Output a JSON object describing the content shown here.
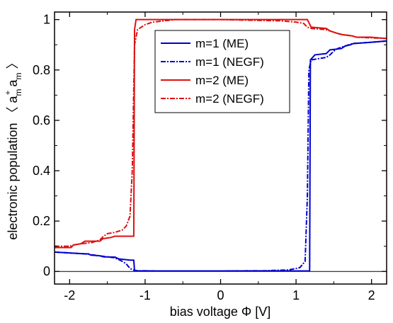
{
  "chart_data": {
    "type": "line",
    "title": "",
    "xlabel": "bias voltage Φ [V]",
    "ylabel": "electronic population ⟨ a_m^+ a_m ⟩",
    "xlim": [
      -2.2,
      2.2
    ],
    "ylim": [
      -0.05,
      1.03
    ],
    "xticks": [
      -2,
      -1,
      0,
      1,
      2
    ],
    "xtick_labels": [
      "-2",
      "-1",
      "0",
      "1",
      "2"
    ],
    "yticks": [
      0,
      0.2,
      0.4,
      0.6,
      0.8,
      1
    ],
    "ytick_labels": [
      "0",
      "0.2",
      "0.4",
      "0.6",
      "0.8",
      "1"
    ],
    "grid": false,
    "legend_position": "top-center",
    "series": [
      {
        "name": "m=1 (ME)",
        "color": "#0000cc",
        "style": "solid",
        "points": [
          [
            -2.2,
            0.077
          ],
          [
            -1.8,
            0.07
          ],
          [
            -1.75,
            0.07
          ],
          [
            -1.72,
            0.065
          ],
          [
            -1.6,
            0.062
          ],
          [
            -1.55,
            0.058
          ],
          [
            -1.4,
            0.057
          ],
          [
            -1.35,
            0.05
          ],
          [
            -1.2,
            0.045
          ],
          [
            -1.15,
            0.045
          ],
          [
            -1.14,
            0.002
          ],
          [
            -1.0,
            0.002
          ],
          [
            0.0,
            0.002
          ],
          [
            1.15,
            0.002
          ],
          [
            1.18,
            0.002
          ],
          [
            1.19,
            0.84
          ],
          [
            1.25,
            0.86
          ],
          [
            1.4,
            0.865
          ],
          [
            1.45,
            0.88
          ],
          [
            1.6,
            0.885
          ],
          [
            1.65,
            0.895
          ],
          [
            1.72,
            0.9
          ],
          [
            1.76,
            0.905
          ],
          [
            2.0,
            0.91
          ],
          [
            2.2,
            0.915
          ]
        ]
      },
      {
        "name": "m=1 (NEGF)",
        "color": "#0000cc",
        "style": "dashdot",
        "points": [
          [
            -2.2,
            0.077
          ],
          [
            -1.8,
            0.07
          ],
          [
            -1.7,
            0.066
          ],
          [
            -1.6,
            0.062
          ],
          [
            -1.5,
            0.058
          ],
          [
            -1.4,
            0.054
          ],
          [
            -1.3,
            0.04
          ],
          [
            -1.25,
            0.03
          ],
          [
            -1.2,
            0.012
          ],
          [
            -1.15,
            0.005
          ],
          [
            -1.1,
            0.003
          ],
          [
            -0.8,
            0.002
          ],
          [
            0.0,
            0.002
          ],
          [
            0.6,
            0.003
          ],
          [
            0.9,
            0.006
          ],
          [
            1.05,
            0.015
          ],
          [
            1.12,
            0.04
          ],
          [
            1.15,
            0.3
          ],
          [
            1.17,
            0.8
          ],
          [
            1.2,
            0.84
          ],
          [
            1.3,
            0.845
          ],
          [
            1.4,
            0.85
          ],
          [
            1.45,
            0.86
          ],
          [
            1.5,
            0.875
          ],
          [
            1.55,
            0.885
          ],
          [
            1.6,
            0.89
          ],
          [
            1.7,
            0.9
          ],
          [
            1.75,
            0.905
          ],
          [
            2.0,
            0.91
          ],
          [
            2.2,
            0.915
          ]
        ]
      },
      {
        "name": "m=2 (ME)",
        "color": "#dd1111",
        "style": "solid",
        "points": [
          [
            -2.2,
            0.095
          ],
          [
            -1.98,
            0.095
          ],
          [
            -1.95,
            0.105
          ],
          [
            -1.85,
            0.11
          ],
          [
            -1.8,
            0.12
          ],
          [
            -1.6,
            0.12
          ],
          [
            -1.56,
            0.13
          ],
          [
            -1.45,
            0.135
          ],
          [
            -1.4,
            0.14
          ],
          [
            -1.15,
            0.14
          ],
          [
            -1.14,
            0.96
          ],
          [
            -1.12,
            1.0
          ],
          [
            1.15,
            1.0
          ],
          [
            1.2,
            0.97
          ],
          [
            1.4,
            0.965
          ],
          [
            1.45,
            0.955
          ],
          [
            1.55,
            0.945
          ],
          [
            1.62,
            0.94
          ],
          [
            1.75,
            0.935
          ],
          [
            1.8,
            0.93
          ],
          [
            2.0,
            0.93
          ],
          [
            2.2,
            0.925
          ]
        ]
      },
      {
        "name": "m=2 (NEGF)",
        "color": "#dd1111",
        "style": "dashdot",
        "points": [
          [
            -2.2,
            0.1
          ],
          [
            -2.0,
            0.1
          ],
          [
            -1.95,
            0.105
          ],
          [
            -1.85,
            0.11
          ],
          [
            -1.7,
            0.115
          ],
          [
            -1.6,
            0.125
          ],
          [
            -1.55,
            0.14
          ],
          [
            -1.5,
            0.15
          ],
          [
            -1.4,
            0.155
          ],
          [
            -1.3,
            0.165
          ],
          [
            -1.25,
            0.18
          ],
          [
            -1.2,
            0.22
          ],
          [
            -1.17,
            0.4
          ],
          [
            -1.14,
            0.9
          ],
          [
            -1.1,
            0.96
          ],
          [
            -1.0,
            0.98
          ],
          [
            -0.9,
            0.99
          ],
          [
            -0.6,
            1.0
          ],
          [
            0.0,
            1.0
          ],
          [
            0.8,
            0.995
          ],
          [
            1.0,
            0.99
          ],
          [
            1.1,
            0.985
          ],
          [
            1.15,
            0.97
          ],
          [
            1.2,
            0.965
          ],
          [
            1.4,
            0.96
          ],
          [
            1.45,
            0.955
          ],
          [
            1.55,
            0.945
          ],
          [
            1.62,
            0.94
          ],
          [
            1.75,
            0.935
          ],
          [
            1.8,
            0.93
          ],
          [
            2.2,
            0.925
          ]
        ]
      }
    ]
  }
}
